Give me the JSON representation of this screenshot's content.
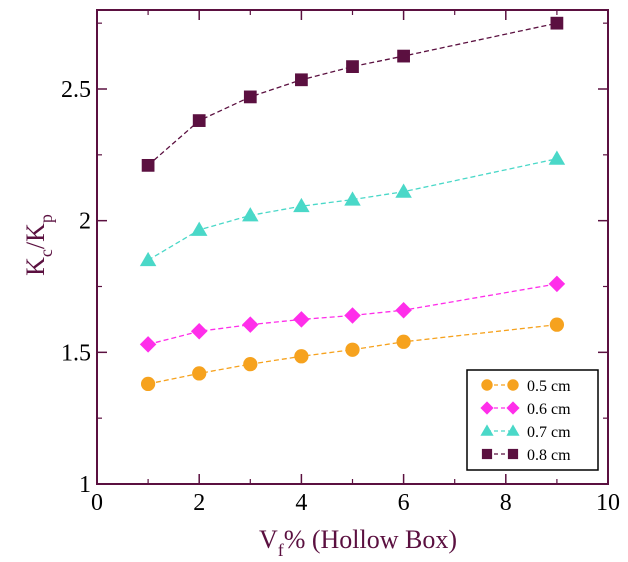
{
  "chart_data": {
    "type": "line",
    "title": "",
    "xlabel": {
      "main": "V",
      "sub": "f",
      "rest": "% (Hollow Box)"
    },
    "ylabel": {
      "k1": "K",
      "s1": "c",
      "mid": "/K",
      "s2": "p"
    },
    "xlim": [
      0,
      10
    ],
    "ylim": [
      1,
      2.75
    ],
    "x_ticks": [
      "0",
      "2",
      "4",
      "6",
      "8",
      "10"
    ],
    "y_ticks": [
      "1",
      "1.5",
      "2",
      "2.5"
    ],
    "grid": false,
    "legend_position": "bottom-right",
    "axis_color": "#5b1040",
    "series": [
      {
        "name": "0.5 cm",
        "marker": "circle",
        "color": "#f6a21e",
        "x": [
          1,
          2,
          3,
          4,
          5,
          6,
          9
        ],
        "y": [
          1.38,
          1.42,
          1.455,
          1.485,
          1.51,
          1.54,
          1.605
        ]
      },
      {
        "name": "0.6 cm",
        "marker": "diamond",
        "color": "#ff2eea",
        "x": [
          1,
          2,
          3,
          4,
          5,
          6,
          9
        ],
        "y": [
          1.53,
          1.58,
          1.605,
          1.625,
          1.64,
          1.66,
          1.76
        ]
      },
      {
        "name": "0.7 cm",
        "marker": "triangle",
        "color": "#4ad8c8",
        "x": [
          1,
          2,
          3,
          4,
          5,
          6,
          9
        ],
        "y": [
          1.85,
          1.965,
          2.02,
          2.055,
          2.08,
          2.11,
          2.235
        ]
      },
      {
        "name": "0.8 cm",
        "marker": "square",
        "color": "#5b1040",
        "x": [
          1,
          2,
          3,
          4,
          5,
          6,
          9
        ],
        "y": [
          2.21,
          2.38,
          2.47,
          2.535,
          2.585,
          2.625,
          2.75
        ]
      }
    ]
  }
}
